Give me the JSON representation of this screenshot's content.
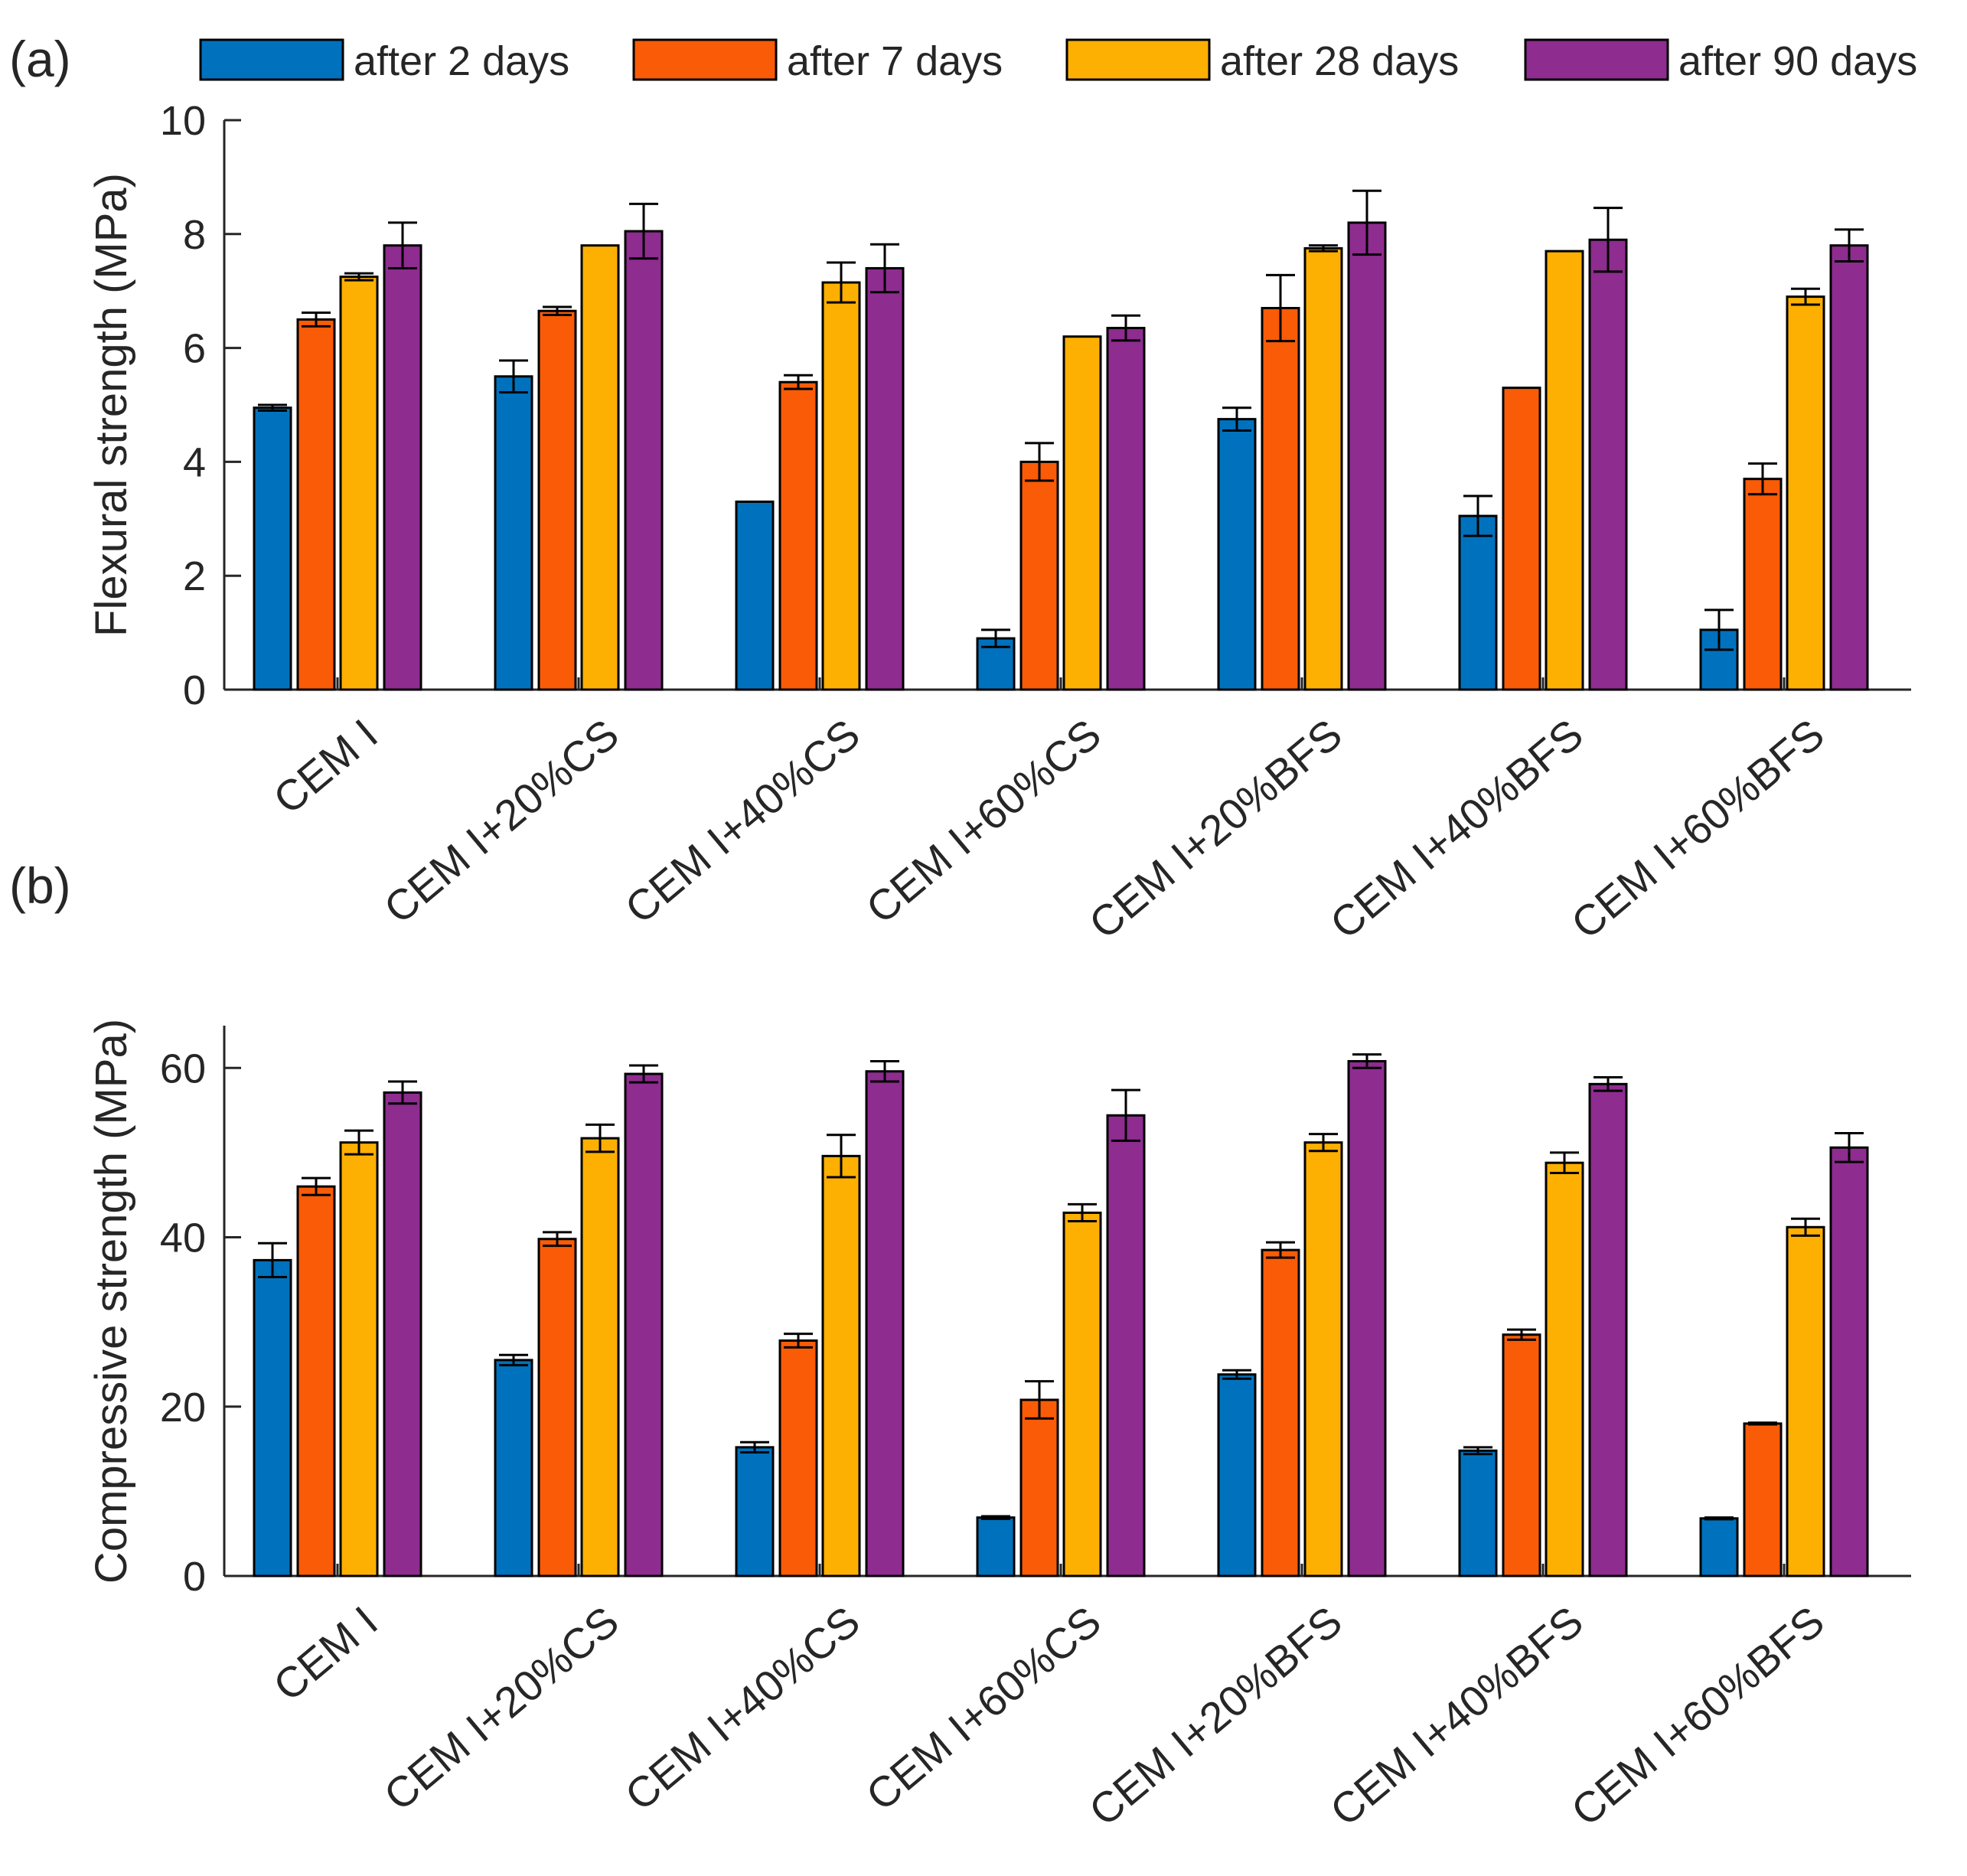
{
  "legend": [
    "after 2 days",
    "after 7 days",
    "after 28 days",
    "after 90 days"
  ],
  "colors": [
    "#0072BD",
    "#F95B07",
    "#FDB001",
    "#8E2C8F"
  ],
  "chart_data": [
    {
      "panel_label": "(a)",
      "type": "bar",
      "title": "",
      "xlabel": "",
      "ylabel": "Flexural strength (MPa)",
      "ylim": [
        0,
        10
      ],
      "yticks": [
        "0",
        "2",
        "4",
        "6",
        "8",
        "10"
      ],
      "categories": [
        "CEM I",
        "CEM I+20%CS",
        "CEM I+40%CS",
        "CEM I+60%CS",
        "CEM I+20%BFS",
        "CEM I+40%BFS",
        "CEM I+60%BFS"
      ],
      "series": [
        {
          "name": "after 2 days",
          "values": [
            4.95,
            5.5,
            3.3,
            0.9,
            4.75,
            3.05,
            1.05
          ],
          "errors": [
            0.05,
            0.28,
            0.0,
            0.15,
            0.2,
            0.35,
            0.35
          ]
        },
        {
          "name": "after 7 days",
          "values": [
            6.5,
            6.65,
            5.4,
            4.0,
            6.7,
            5.3,
            3.7
          ],
          "errors": [
            0.12,
            0.07,
            0.12,
            0.33,
            0.58,
            0.0,
            0.27
          ]
        },
        {
          "name": "after 28 days",
          "values": [
            7.25,
            7.8,
            7.15,
            6.2,
            7.75,
            7.7,
            6.9
          ],
          "errors": [
            0.06,
            0.0,
            0.35,
            0.0,
            0.05,
            0.0,
            0.14
          ]
        },
        {
          "name": "after 90 days",
          "values": [
            7.8,
            8.05,
            7.4,
            6.35,
            8.2,
            7.9,
            7.8
          ],
          "errors": [
            0.4,
            0.48,
            0.42,
            0.22,
            0.56,
            0.56,
            0.28
          ]
        }
      ]
    },
    {
      "panel_label": "(b)",
      "type": "bar",
      "title": "",
      "xlabel": "",
      "ylabel": "Compressive strength (MPa)",
      "ylim": [
        0,
        65
      ],
      "yticks": [
        "0",
        "20",
        "40",
        "60"
      ],
      "categories": [
        "CEM I",
        "CEM I+20%CS",
        "CEM I+40%CS",
        "CEM I+60%CS",
        "CEM I+20%BFS",
        "CEM I+40%BFS",
        "CEM I+60%BFS"
      ],
      "series": [
        {
          "name": "after 2 days",
          "values": [
            37.3,
            25.5,
            15.2,
            6.9,
            23.8,
            14.8,
            6.8
          ],
          "errors": [
            2.0,
            0.6,
            0.6,
            0.15,
            0.5,
            0.4,
            0.1
          ]
        },
        {
          "name": "after 7 days",
          "values": [
            46.0,
            39.8,
            27.8,
            20.8,
            38.5,
            28.5,
            18.0
          ],
          "errors": [
            1.0,
            0.8,
            0.8,
            2.2,
            0.9,
            0.6,
            0.1
          ]
        },
        {
          "name": "after 28 days",
          "values": [
            51.2,
            51.7,
            49.6,
            42.9,
            51.2,
            48.8,
            41.2
          ],
          "errors": [
            1.4,
            1.6,
            2.5,
            1.0,
            1.0,
            1.2,
            1.0
          ]
        },
        {
          "name": "after 90 days",
          "values": [
            57.1,
            59.3,
            59.6,
            54.4,
            60.8,
            58.1,
            50.6
          ],
          "errors": [
            1.3,
            1.0,
            1.2,
            3.0,
            0.8,
            0.8,
            1.7
          ]
        }
      ]
    }
  ]
}
